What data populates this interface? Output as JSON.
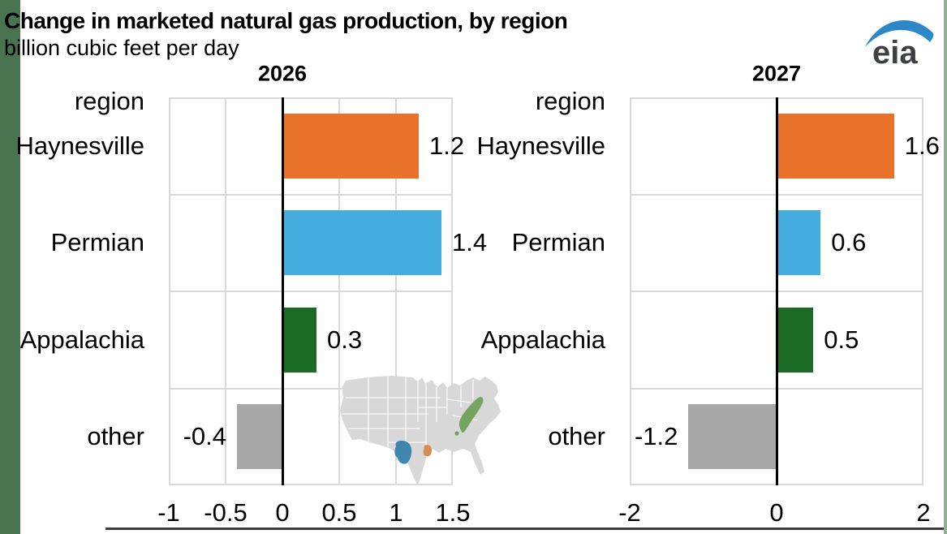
{
  "page": {
    "left_strip_color": "#4A7350",
    "right_strip_color": "#92AE96",
    "bottom_line_color": "#3C3C3C"
  },
  "header": {
    "title": "Change in marketed natural gas production, by region",
    "subtitle": "billion cubic feet per day",
    "logo_text": "eia",
    "logo_text_color": "#3F4043",
    "logo_swoosh_color": "#2B87C8"
  },
  "chart_data": [
    {
      "type": "bar",
      "orientation": "horizontal",
      "title": "2026",
      "axis_header": "region",
      "categories": [
        "Haynesville",
        "Permian",
        "Appalachia",
        "other"
      ],
      "values": [
        1.2,
        1.4,
        0.3,
        -0.4
      ],
      "value_labels": [
        "1.2",
        "1.4",
        "0.3",
        "-0.4"
      ],
      "bar_colors": [
        "#E8722A",
        "#45ACDF",
        "#1B6B24",
        "#A7A7A7"
      ],
      "xlim": [
        -1,
        1.5
      ],
      "x_ticks": [
        -1,
        -0.5,
        0,
        0.5,
        1,
        1.5
      ],
      "x_tick_labels": [
        "-1",
        "-0.5",
        "0",
        "0.5",
        "1",
        "1.5"
      ],
      "x_gridlines": [
        -0.5,
        0.5,
        1
      ],
      "grid_color": "#D9D9D9",
      "zero_line": true,
      "ylabel": "region",
      "xlabel": "billion cubic feet per day"
    },
    {
      "type": "bar",
      "orientation": "horizontal",
      "title": "2027",
      "axis_header": "region",
      "categories": [
        "Haynesville",
        "Permian",
        "Appalachia",
        "other"
      ],
      "values": [
        1.6,
        0.6,
        0.5,
        -1.2
      ],
      "value_labels": [
        "1.6",
        "0.6",
        "0.5",
        "-1.2"
      ],
      "bar_colors": [
        "#E8722A",
        "#45ACDF",
        "#1B6B24",
        "#A7A7A7"
      ],
      "xlim": [
        -2,
        2
      ],
      "x_ticks": [
        -2,
        0,
        2
      ],
      "x_tick_labels": [
        "-2",
        "0",
        "2"
      ],
      "x_gridlines": [],
      "grid_color": "#D9D9D9",
      "zero_line": true,
      "ylabel": "region",
      "xlabel": "billion cubic feet per day"
    }
  ],
  "map": {
    "land_color": "#D8D8D8",
    "state_line_color": "#FFFFFF",
    "regions": [
      {
        "name": "Permian",
        "color": "#3E86AE"
      },
      {
        "name": "Haynesville",
        "color": "#D28C55"
      },
      {
        "name": "Appalachia",
        "color": "#74A45E"
      }
    ]
  }
}
